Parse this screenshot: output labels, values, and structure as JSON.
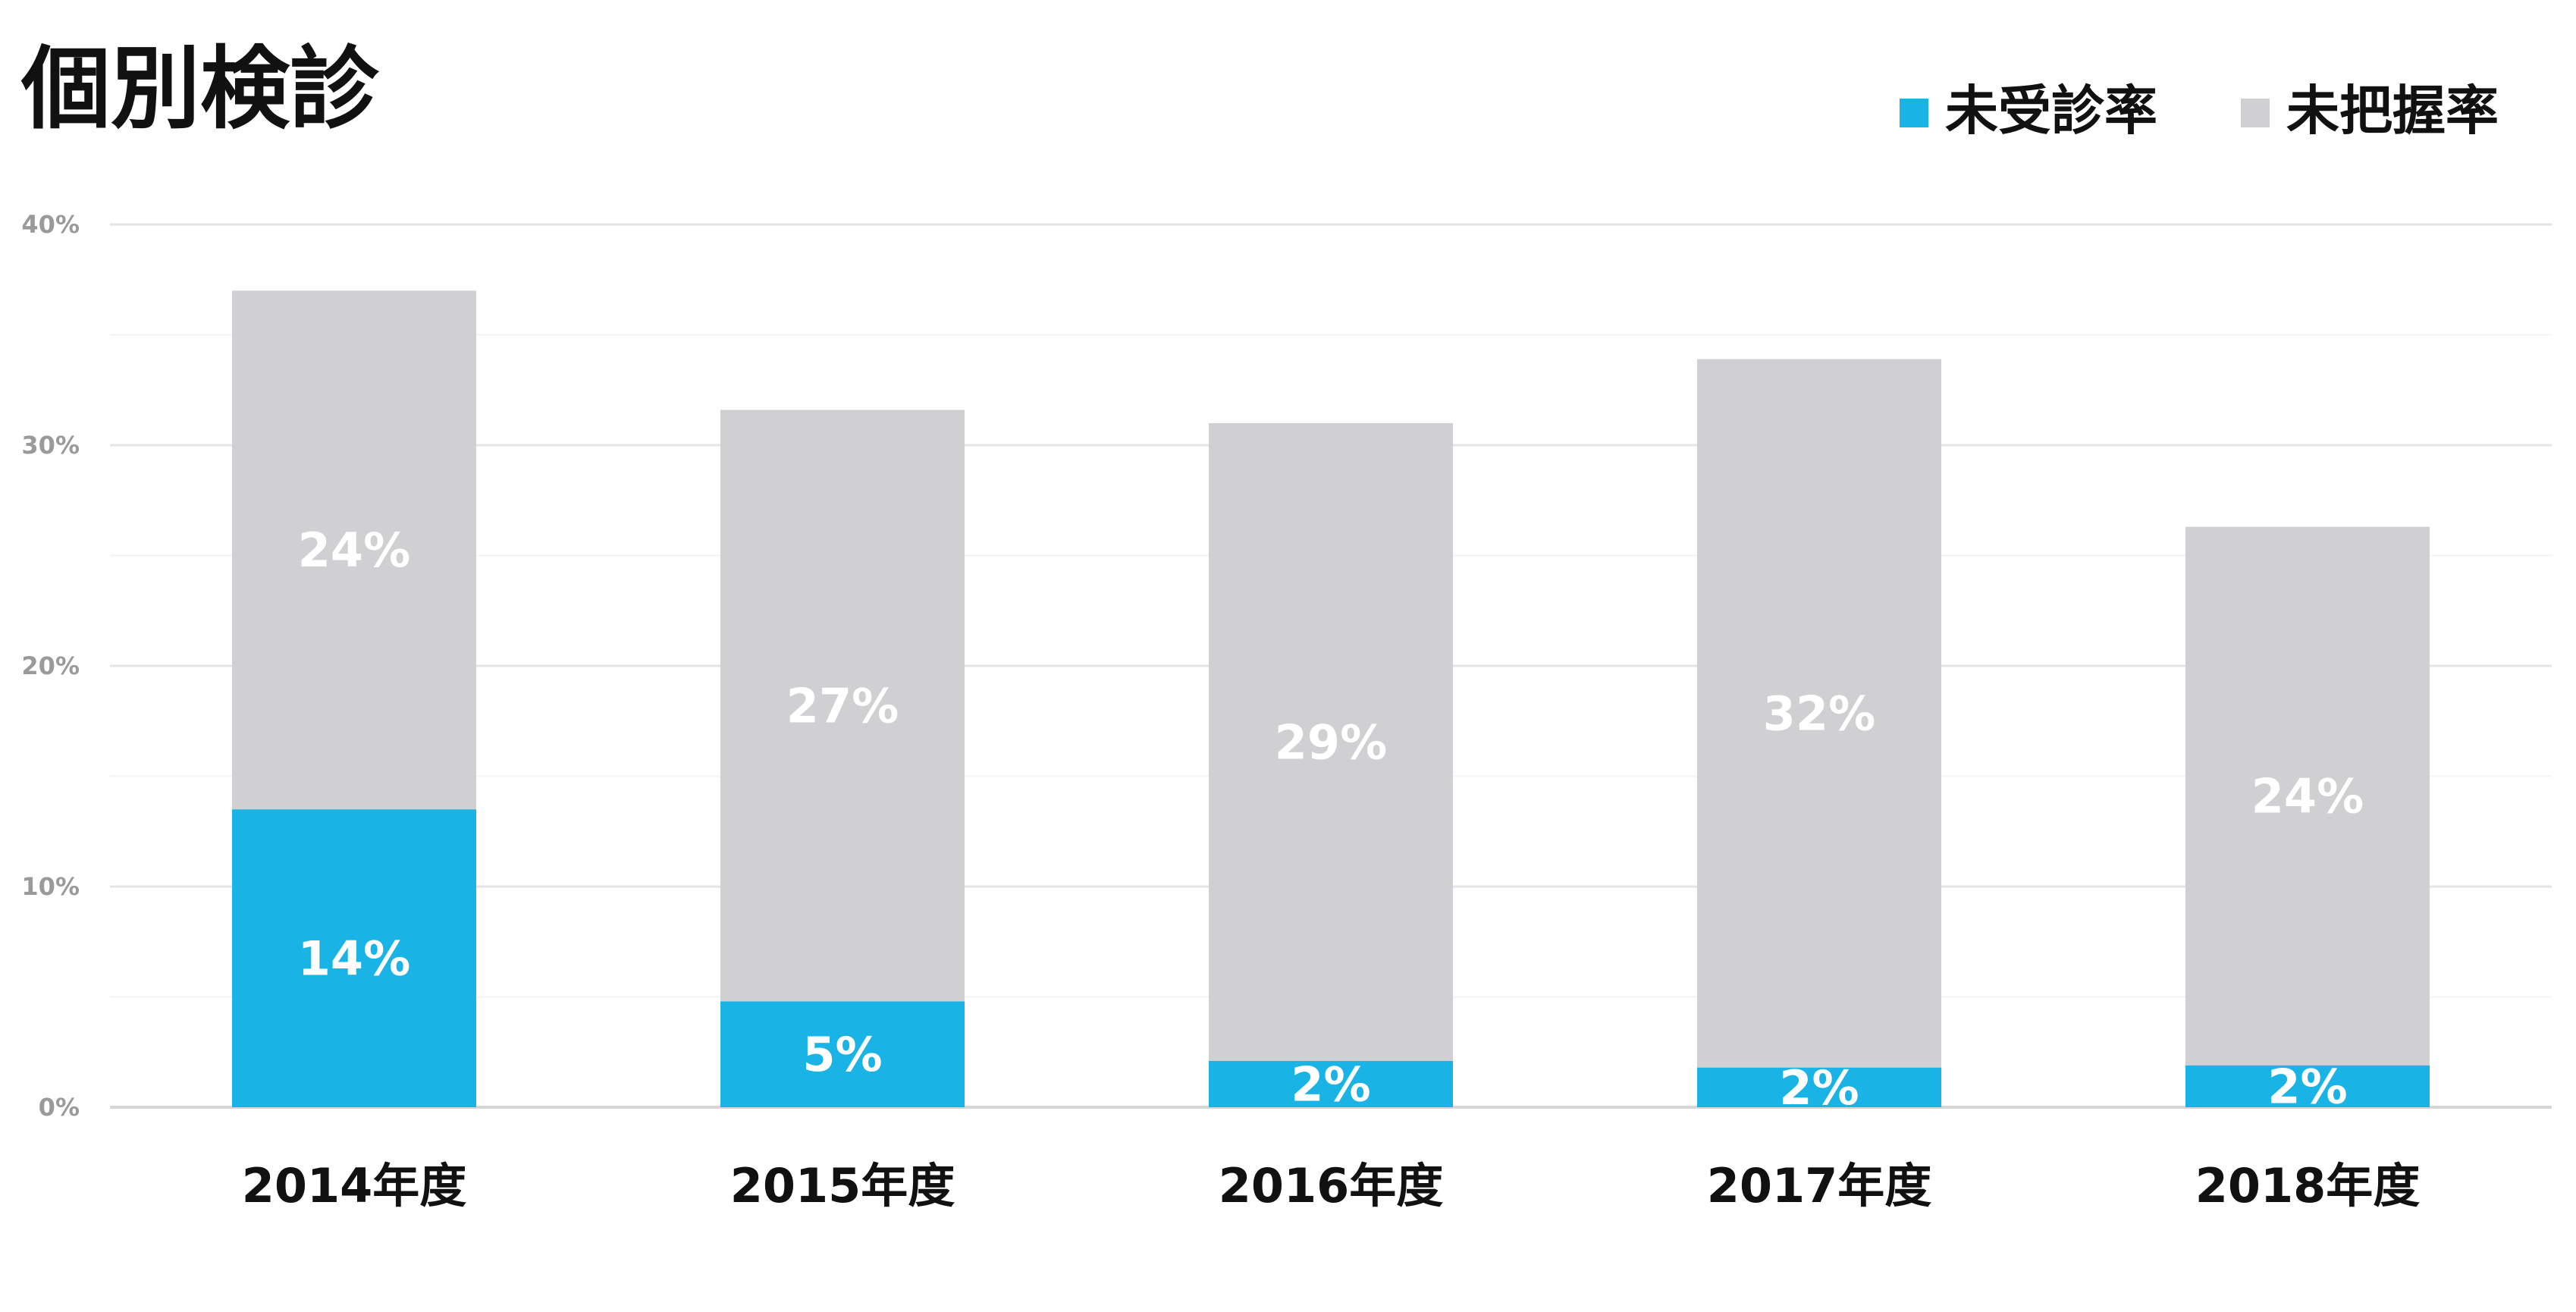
{
  "chart_data": {
    "type": "bar",
    "stacked": true,
    "title": "個別検診",
    "categories": [
      "2014年度",
      "2015年度",
      "2016年度",
      "2017年度",
      "2018年度"
    ],
    "series": [
      {
        "name": "未受診率",
        "color": "#1ab3e6",
        "values": [
          13.5,
          4.8,
          2.1,
          1.8,
          1.9
        ],
        "labels": [
          "14%",
          "5%",
          "2%",
          "2%",
          "2%"
        ]
      },
      {
        "name": "未把握率",
        "color": "#d0cfd1",
        "values": [
          23.5,
          26.8,
          28.9,
          32.1,
          24.4
        ],
        "labels": [
          "24%",
          "27%",
          "29%",
          "32%",
          "24%"
        ]
      }
    ],
    "y_ticks": [
      "0%",
      "10%",
      "20%",
      "30%",
      "40%"
    ],
    "ylim": [
      0,
      40
    ],
    "grid": true,
    "legend_position": "top-right"
  }
}
